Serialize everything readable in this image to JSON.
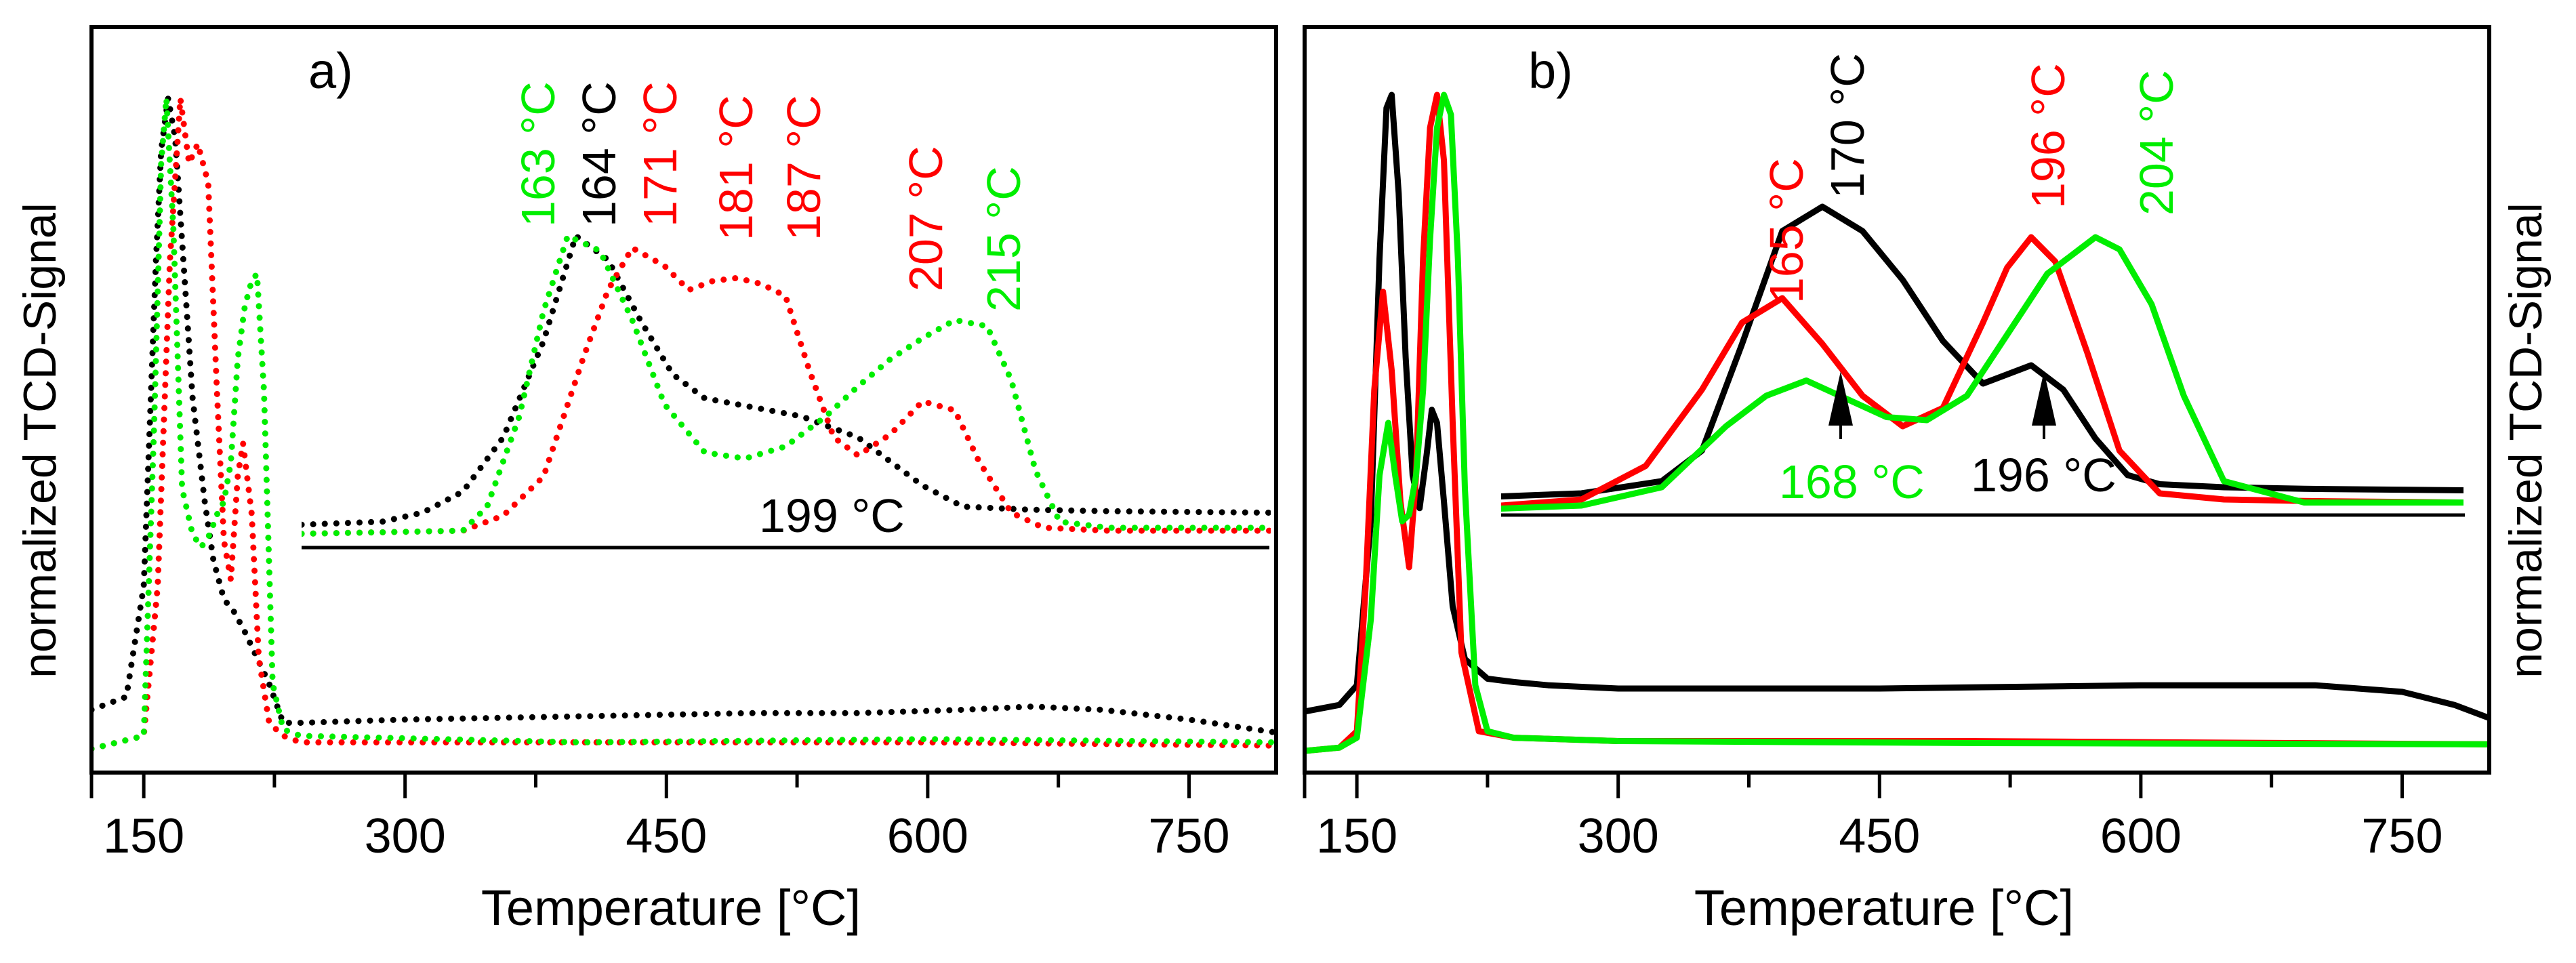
{
  "chart_data": [
    {
      "type": "line",
      "panel_label": "a)",
      "line_style": "dotted",
      "xlabel": "Temperature [°C]",
      "ylabel": "normalized TCD-Signal",
      "xlim": [
        120,
        800
      ],
      "ylim": [
        0,
        1.0
      ],
      "x_ticks": [
        150,
        300,
        450,
        600,
        750
      ],
      "x_tick_labels": [
        "150",
        "300",
        "450",
        "600",
        "750"
      ],
      "series": [
        {
          "name": "black",
          "color": "#000000",
          "x": [
            120,
            140,
            150,
            157,
            160,
            164,
            168,
            172,
            178,
            185,
            190,
            196,
            202,
            208,
            215,
            222,
            230,
            240,
            300,
            400,
            500,
            560,
            620,
            660,
            700,
            750,
            800
          ],
          "y": [
            0.06,
            0.08,
            0.25,
            0.75,
            0.92,
            1.0,
            0.94,
            0.78,
            0.54,
            0.38,
            0.29,
            0.23,
            0.21,
            0.18,
            0.14,
            0.1,
            0.04,
            0.04,
            0.045,
            0.05,
            0.055,
            0.055,
            0.06,
            0.065,
            0.06,
            0.045,
            0.025
          ]
        },
        {
          "name": "red",
          "color": "#ff0000",
          "x": [
            120,
            150,
            158,
            165,
            171,
            176,
            181,
            187,
            192,
            196,
            200,
            204,
            207,
            212,
            216,
            222,
            230,
            240,
            400,
            600,
            800
          ],
          "y": [
            0.0,
            0.02,
            0.25,
            0.75,
            1.0,
            0.9,
            0.93,
            0.87,
            0.55,
            0.32,
            0.26,
            0.42,
            0.47,
            0.36,
            0.14,
            0.04,
            0.02,
            0.01,
            0.01,
            0.01,
            0.005
          ]
        },
        {
          "name": "green",
          "color": "#00ee00",
          "x": [
            120,
            150,
            156,
            160,
            163,
            167,
            172,
            178,
            183,
            188,
            192,
            196,
            200,
            204,
            208,
            212,
            215,
            219,
            224,
            230,
            240,
            400,
            600,
            800
          ],
          "y": [
            0.0,
            0.02,
            0.5,
            0.9,
            1.0,
            0.8,
            0.4,
            0.33,
            0.31,
            0.33,
            0.36,
            0.38,
            0.44,
            0.6,
            0.68,
            0.72,
            0.73,
            0.55,
            0.1,
            0.03,
            0.02,
            0.01,
            0.015,
            0.01
          ]
        }
      ],
      "annotations": [
        {
          "text": "163 °C",
          "color": "#00ee00"
        },
        {
          "text": "164 °C",
          "color": "#000000"
        },
        {
          "text": "171 °C",
          "color": "#ff0000"
        },
        {
          "text": "181 °C",
          "color": "#ff0000"
        },
        {
          "text": "187 °C",
          "color": "#ff0000"
        },
        {
          "text": "207 °C",
          "color": "#ff0000"
        },
        {
          "text": "215 °C",
          "color": "#00ee00"
        },
        {
          "text": "199 °C",
          "color": "#000000"
        }
      ],
      "inset": {
        "xlim": [
          130,
          250
        ],
        "ylim": [
          0,
          1.0
        ],
        "series": [
          {
            "name": "black",
            "color": "#000000",
            "x": [
              130,
              140,
              145,
              150,
              155,
              160,
              164,
              168,
              172,
              176,
              180,
              184,
              188,
              192,
              196,
              199,
              203,
              207,
              212,
              220,
              230,
              250
            ],
            "y": [
              0.04,
              0.05,
              0.08,
              0.15,
              0.33,
              0.65,
              1.0,
              0.92,
              0.72,
              0.54,
              0.46,
              0.44,
              0.42,
              0.4,
              0.36,
              0.33,
              0.25,
              0.17,
              0.1,
              0.09,
              0.085,
              0.08
            ]
          },
          {
            "name": "red",
            "color": "#ff0000",
            "x": [
              130,
              150,
              155,
              160,
              165,
              168,
              171,
              175,
              178,
              181,
              184,
              187,
              190,
              193,
              196,
              199,
              203,
              207,
              211,
              214,
              218,
              222,
              230,
              250
            ],
            "y": [
              0.01,
              0.02,
              0.07,
              0.2,
              0.6,
              0.82,
              0.96,
              0.9,
              0.82,
              0.85,
              0.86,
              0.84,
              0.8,
              0.55,
              0.33,
              0.27,
              0.34,
              0.45,
              0.42,
              0.25,
              0.08,
              0.03,
              0.02,
              0.02
            ]
          },
          {
            "name": "green",
            "color": "#00ee00",
            "x": [
              130,
              150,
              153,
              157,
              160,
              163,
              167,
              171,
              175,
              180,
              185,
              190,
              195,
              199,
              203,
              207,
              211,
              215,
              218,
              221,
              224,
              230,
              250
            ],
            "y": [
              0.01,
              0.02,
              0.1,
              0.4,
              0.75,
              1.0,
              0.95,
              0.72,
              0.44,
              0.28,
              0.26,
              0.3,
              0.4,
              0.5,
              0.59,
              0.66,
              0.72,
              0.7,
              0.52,
              0.22,
              0.05,
              0.03,
              0.03
            ]
          }
        ]
      }
    },
    {
      "type": "line",
      "panel_label": "b)",
      "line_style": "solid",
      "xlabel": "Temperature [°C]",
      "ylabel": "normalized TCD-Signal",
      "xlim": [
        120,
        800
      ],
      "ylim": [
        0,
        1.0
      ],
      "x_ticks": [
        150,
        300,
        450,
        600,
        750
      ],
      "x_tick_labels": [
        "150",
        "300",
        "450",
        "600",
        "750"
      ],
      "series": [
        {
          "name": "black",
          "color": "#000000",
          "x": [
            120,
            140,
            150,
            158,
            163,
            167,
            170,
            174,
            178,
            182,
            186,
            190,
            193,
            196,
            200,
            205,
            212,
            225,
            240,
            260,
            300,
            450,
            600,
            700,
            750,
            780,
            800
          ],
          "y": [
            0.06,
            0.07,
            0.1,
            0.35,
            0.75,
            0.98,
            1.0,
            0.85,
            0.6,
            0.42,
            0.37,
            0.45,
            0.52,
            0.5,
            0.38,
            0.22,
            0.14,
            0.11,
            0.105,
            0.1,
            0.095,
            0.095,
            0.1,
            0.1,
            0.09,
            0.07,
            0.05
          ]
        },
        {
          "name": "red",
          "color": "#ff0000",
          "x": [
            120,
            140,
            150,
            155,
            160,
            165,
            170,
            175,
            180,
            184,
            188,
            192,
            196,
            200,
            205,
            210,
            220,
            240,
            300,
            500,
            800
          ],
          "y": [
            0.0,
            0.005,
            0.03,
            0.25,
            0.55,
            0.7,
            0.58,
            0.38,
            0.28,
            0.42,
            0.75,
            0.95,
            1.0,
            0.9,
            0.5,
            0.15,
            0.03,
            0.02,
            0.015,
            0.015,
            0.01
          ]
        },
        {
          "name": "green",
          "color": "#00ee00",
          "x": [
            120,
            140,
            150,
            158,
            163,
            168,
            172,
            176,
            180,
            184,
            188,
            192,
            196,
            200,
            204,
            208,
            212,
            218,
            225,
            240,
            300,
            500,
            800
          ],
          "y": [
            0.0,
            0.005,
            0.02,
            0.2,
            0.42,
            0.5,
            0.42,
            0.35,
            0.36,
            0.42,
            0.55,
            0.78,
            0.95,
            1.0,
            0.97,
            0.75,
            0.4,
            0.1,
            0.03,
            0.02,
            0.015,
            0.012,
            0.01
          ]
        }
      ],
      "annotations": [
        {
          "text": "165 °C",
          "color": "#ff0000"
        },
        {
          "text": "170 °C",
          "color": "#000000"
        },
        {
          "text": "196 °C",
          "color": "#ff0000"
        },
        {
          "text": "204 °C",
          "color": "#00ee00"
        },
        {
          "text": "168 °C",
          "color": "#00ee00"
        },
        {
          "text": "196 °C",
          "color": "#000000"
        }
      ],
      "inset": {
        "xlim": [
          130,
          250
        ],
        "ylim": [
          0,
          1.0
        ],
        "series": [
          {
            "name": "black",
            "color": "#000000",
            "x": [
              130,
              140,
              150,
              155,
              160,
              165,
              170,
              175,
              180,
              185,
              190,
              193,
              196,
              200,
              204,
              208,
              212,
              220,
              230,
              250
            ],
            "y": [
              0.05,
              0.06,
              0.1,
              0.2,
              0.55,
              0.92,
              1.0,
              0.92,
              0.76,
              0.56,
              0.42,
              0.45,
              0.48,
              0.4,
              0.24,
              0.12,
              0.09,
              0.08,
              0.075,
              0.07
            ]
          },
          {
            "name": "red",
            "color": "#ff0000",
            "x": [
              130,
              140,
              148,
              155,
              160,
              165,
              170,
              175,
              180,
              185,
              190,
              193,
              196,
              199,
              203,
              207,
              212,
              220,
              230,
              250
            ],
            "y": [
              0.02,
              0.04,
              0.15,
              0.4,
              0.62,
              0.7,
              0.55,
              0.38,
              0.28,
              0.34,
              0.62,
              0.8,
              0.9,
              0.82,
              0.52,
              0.2,
              0.06,
              0.04,
              0.035,
              0.03
            ]
          },
          {
            "name": "green",
            "color": "#00ee00",
            "x": [
              130,
              140,
              150,
              158,
              163,
              168,
              173,
              178,
              183,
              188,
              193,
              198,
              202,
              204,
              207,
              211,
              215,
              220,
              230,
              250
            ],
            "y": [
              0.01,
              0.02,
              0.08,
              0.28,
              0.38,
              0.43,
              0.37,
              0.31,
              0.3,
              0.38,
              0.58,
              0.78,
              0.86,
              0.9,
              0.86,
              0.68,
              0.38,
              0.1,
              0.03,
              0.03
            ]
          }
        ]
      }
    }
  ]
}
